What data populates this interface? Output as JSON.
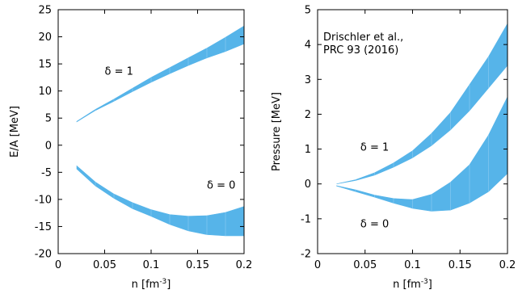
{
  "chart_data": [
    {
      "type": "area",
      "xlabel": "n [fm",
      "xlabel_sup": "-3",
      "xlabel_end": "]",
      "ylabel": "E/A [MeV]",
      "xlim": [
        0,
        0.2
      ],
      "ylim": [
        -20,
        25
      ],
      "xticks": [
        0,
        0.05,
        0.1,
        0.15,
        0.2
      ],
      "xtick_labels": [
        "0",
        "0.05",
        "0.1",
        "0.15",
        "0.2"
      ],
      "yticks": [
        -20,
        -15,
        -10,
        -5,
        0,
        5,
        10,
        15,
        20,
        25
      ],
      "ytick_labels": [
        "-20",
        "-15",
        "-10",
        "-5",
        "0",
        "5",
        "10",
        "15",
        "20",
        "25"
      ],
      "grid": false,
      "fill_color": "#56b4e9",
      "annotations": [
        {
          "text": "δ = 1",
          "x": 0.05,
          "y": 13
        },
        {
          "text": "δ = 0",
          "x": 0.16,
          "y": -8
        }
      ],
      "series": [
        {
          "x": [
            0.02,
            0.04,
            0.06,
            0.08,
            0.1,
            0.12,
            0.14,
            0.16,
            0.18,
            0.2
          ],
          "upper": [
            4.4,
            6.6,
            8.5,
            10.5,
            12.5,
            14.3,
            16.1,
            17.9,
            19.9,
            22.0
          ],
          "lower": [
            4.3,
            6.4,
            8.1,
            9.9,
            11.6,
            13.2,
            14.7,
            16.1,
            17.3,
            18.7
          ]
        },
        {
          "x": [
            0.02,
            0.04,
            0.06,
            0.08,
            0.1,
            0.12,
            0.14,
            0.16,
            0.18,
            0.2
          ],
          "upper": [
            -3.8,
            -6.8,
            -9.0,
            -10.6,
            -11.9,
            -12.8,
            -13.1,
            -13.0,
            -12.4,
            -11.3
          ],
          "lower": [
            -4.4,
            -7.5,
            -9.8,
            -11.7,
            -13.1,
            -14.6,
            -15.8,
            -16.5,
            -16.7,
            -16.7
          ]
        }
      ]
    },
    {
      "type": "area",
      "xlabel": "n [fm",
      "xlabel_sup": "-3",
      "xlabel_end": "]",
      "ylabel": "Pressure [MeV]",
      "xlim": [
        0,
        0.2
      ],
      "ylim": [
        -2,
        5
      ],
      "xticks": [
        0,
        0.05,
        0.1,
        0.15,
        0.2
      ],
      "xtick_labels": [
        "0",
        "0.05",
        "0.1",
        "0.15",
        "0.2"
      ],
      "yticks": [
        -2,
        -1,
        0,
        1,
        2,
        3,
        4,
        5
      ],
      "ytick_labels": [
        "-2",
        "-1",
        "0",
        "1",
        "2",
        "3",
        "4",
        "5"
      ],
      "grid": false,
      "fill_color": "#56b4e9",
      "legend_text_lines": [
        "Drischler et al.,",
        "PRC 93 (2016)"
      ],
      "annotations": [
        {
          "text": "δ = 1",
          "x": 0.045,
          "y": 0.95
        },
        {
          "text": "δ = 0",
          "x": 0.045,
          "y": -1.25
        }
      ],
      "series": [
        {
          "x": [
            0.02,
            0.04,
            0.06,
            0.08,
            0.1,
            0.12,
            0.14,
            0.16,
            0.18,
            0.2
          ],
          "upper": [
            0.0,
            0.12,
            0.32,
            0.6,
            0.95,
            1.45,
            2.05,
            2.85,
            3.65,
            4.6
          ],
          "lower": [
            0.0,
            0.1,
            0.25,
            0.48,
            0.75,
            1.1,
            1.55,
            2.1,
            2.75,
            3.4
          ]
        },
        {
          "x": [
            0.02,
            0.04,
            0.06,
            0.08,
            0.1,
            0.12,
            0.14,
            0.16,
            0.18,
            0.2
          ],
          "upper": [
            -0.05,
            -0.17,
            -0.32,
            -0.42,
            -0.45,
            -0.3,
            0.05,
            0.55,
            1.4,
            2.5
          ],
          "lower": [
            -0.06,
            -0.22,
            -0.38,
            -0.55,
            -0.7,
            -0.78,
            -0.75,
            -0.55,
            -0.22,
            0.3
          ]
        }
      ]
    }
  ]
}
